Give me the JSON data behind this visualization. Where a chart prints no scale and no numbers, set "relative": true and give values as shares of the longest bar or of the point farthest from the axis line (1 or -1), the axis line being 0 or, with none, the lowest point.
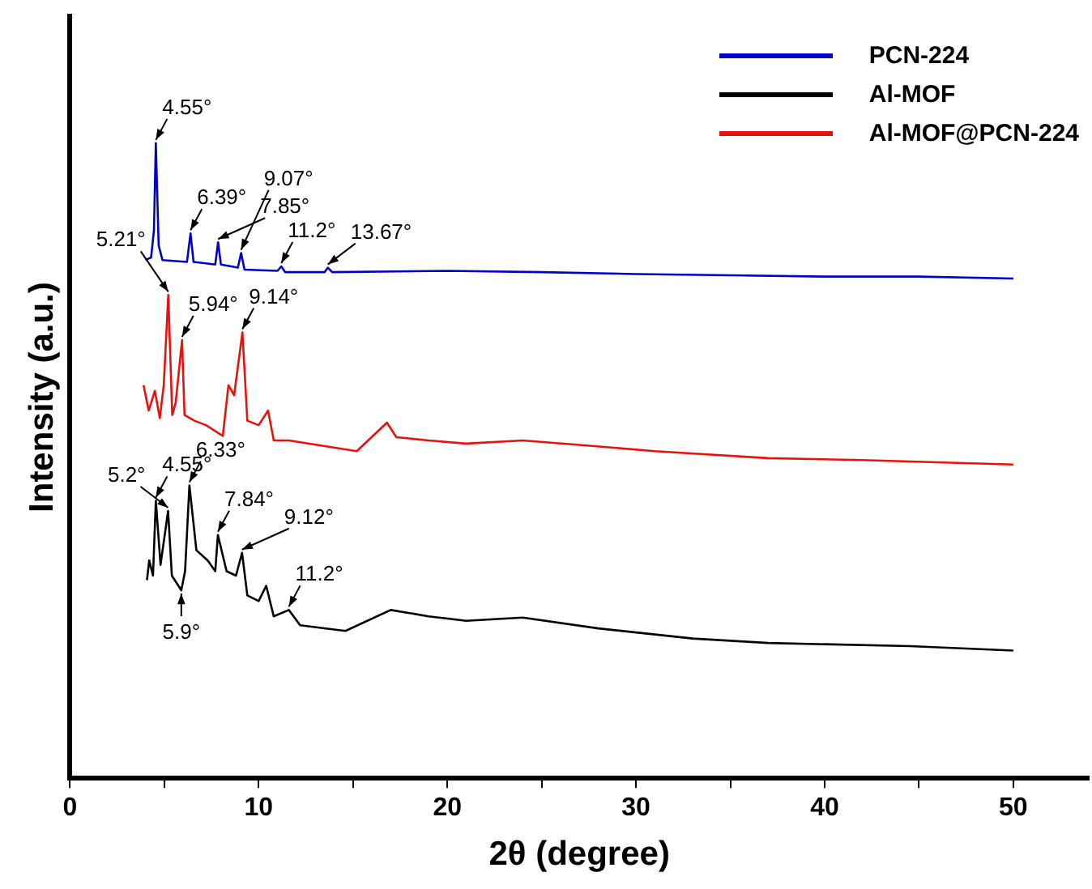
{
  "chart_data": {
    "type": "line",
    "xlabel": "2θ (degree)",
    "ylabel": "Intensity (a.u.)",
    "relative": true,
    "xlim": [
      0,
      54
    ],
    "xticks": [
      0,
      {
        "value": 5,
        "label": null
      },
      10,
      {
        "value": 15,
        "label": null
      },
      20,
      {
        "value": 25,
        "label": null
      },
      30,
      {
        "value": 35,
        "label": null
      },
      40,
      {
        "value": 45,
        "label": null
      },
      50
    ],
    "grid": false,
    "legend": "top right",
    "marker": "none",
    "line_style": "solid",
    "series": [
      {
        "name": "PCN-224",
        "color": "#0000c8",
        "x": [
          4.0,
          4.3,
          4.45,
          4.55,
          4.7,
          4.9,
          6.2,
          6.39,
          6.55,
          7.7,
          7.85,
          8.0,
          8.9,
          9.07,
          9.25,
          11.0,
          11.2,
          11.4,
          13.5,
          13.67,
          13.9,
          20,
          25,
          30,
          35,
          40,
          45,
          50
        ],
        "values": [
          0.816,
          0.82,
          0.863,
          1.0,
          0.839,
          0.816,
          0.813,
          0.858,
          0.813,
          0.809,
          0.844,
          0.809,
          0.804,
          0.827,
          0.801,
          0.799,
          0.806,
          0.797,
          0.797,
          0.804,
          0.797,
          0.799,
          0.797,
          0.794,
          0.792,
          0.79,
          0.79,
          0.787
        ]
      },
      {
        "name": "Al-MOF",
        "color": "#000000",
        "x": [
          4.08,
          4.2,
          4.4,
          4.55,
          4.8,
          5.2,
          5.4,
          5.9,
          6.1,
          6.33,
          6.7,
          7.3,
          7.7,
          7.84,
          8.3,
          8.8,
          9.12,
          9.4,
          10.0,
          10.4,
          10.8,
          11.6,
          12.2,
          14.6,
          17,
          19,
          21,
          24,
          28,
          33,
          37,
          44.5,
          50
        ],
        "values": [
          0.312,
          0.343,
          0.319,
          0.437,
          0.336,
          0.421,
          0.319,
          0.296,
          0.326,
          0.461,
          0.359,
          0.343,
          0.326,
          0.383,
          0.326,
          0.319,
          0.355,
          0.288,
          0.279,
          0.303,
          0.255,
          0.265,
          0.241,
          0.232,
          0.265,
          0.255,
          0.248,
          0.253,
          0.236,
          0.22,
          0.213,
          0.208,
          0.201
        ]
      },
      {
        "name": "Al-MOF@PCN-224",
        "color": "#e8120c",
        "x": [
          3.9,
          4.17,
          4.5,
          4.76,
          4.97,
          5.21,
          5.42,
          5.6,
          5.94,
          6.07,
          6.6,
          7.2,
          8.1,
          8.4,
          8.7,
          9.14,
          9.4,
          10.0,
          10.5,
          10.8,
          11.6,
          13.1,
          15.2,
          16.8,
          17.3,
          19,
          21,
          24,
          27,
          31,
          37,
          42,
          50
        ],
        "values": [
          0.619,
          0.579,
          0.61,
          0.567,
          0.619,
          0.761,
          0.572,
          0.591,
          0.69,
          0.572,
          0.563,
          0.556,
          0.539,
          0.619,
          0.603,
          0.702,
          0.563,
          0.556,
          0.579,
          0.532,
          0.532,
          0.525,
          0.515,
          0.56,
          0.537,
          0.532,
          0.527,
          0.532,
          0.525,
          0.515,
          0.504,
          0.501,
          0.494
        ]
      }
    ],
    "annotations": [
      {
        "text": "4.55°",
        "x": 4.55,
        "y": 1.0
      },
      {
        "text": "6.39°",
        "x": 6.39,
        "y": 0.858
      },
      {
        "text": "7.85°",
        "x": 7.85,
        "y": 0.844
      },
      {
        "text": "9.07°",
        "x": 9.07,
        "y": 0.827
      },
      {
        "text": "11.2°",
        "x": 11.2,
        "y": 0.806
      },
      {
        "text": "13.67°",
        "x": 13.67,
        "y": 0.804
      },
      {
        "text": "5.21°",
        "x": 5.21,
        "y": 0.761
      },
      {
        "text": "5.94°",
        "x": 5.94,
        "y": 0.69
      },
      {
        "text": "9.14°",
        "x": 9.14,
        "y": 0.702
      },
      {
        "text": "4.55°",
        "x": 4.55,
        "y": 0.437
      },
      {
        "text": "5.2°",
        "x": 5.2,
        "y": 0.421
      },
      {
        "text": "6.33°",
        "x": 6.33,
        "y": 0.461
      },
      {
        "text": "7.84°",
        "x": 7.84,
        "y": 0.383
      },
      {
        "text": "9.12°",
        "x": 9.12,
        "y": 0.355
      },
      {
        "text": "11.2°",
        "x": 11.6,
        "y": 0.265
      },
      {
        "text": "5.9°",
        "x": 5.9,
        "y": 0.296
      }
    ]
  }
}
